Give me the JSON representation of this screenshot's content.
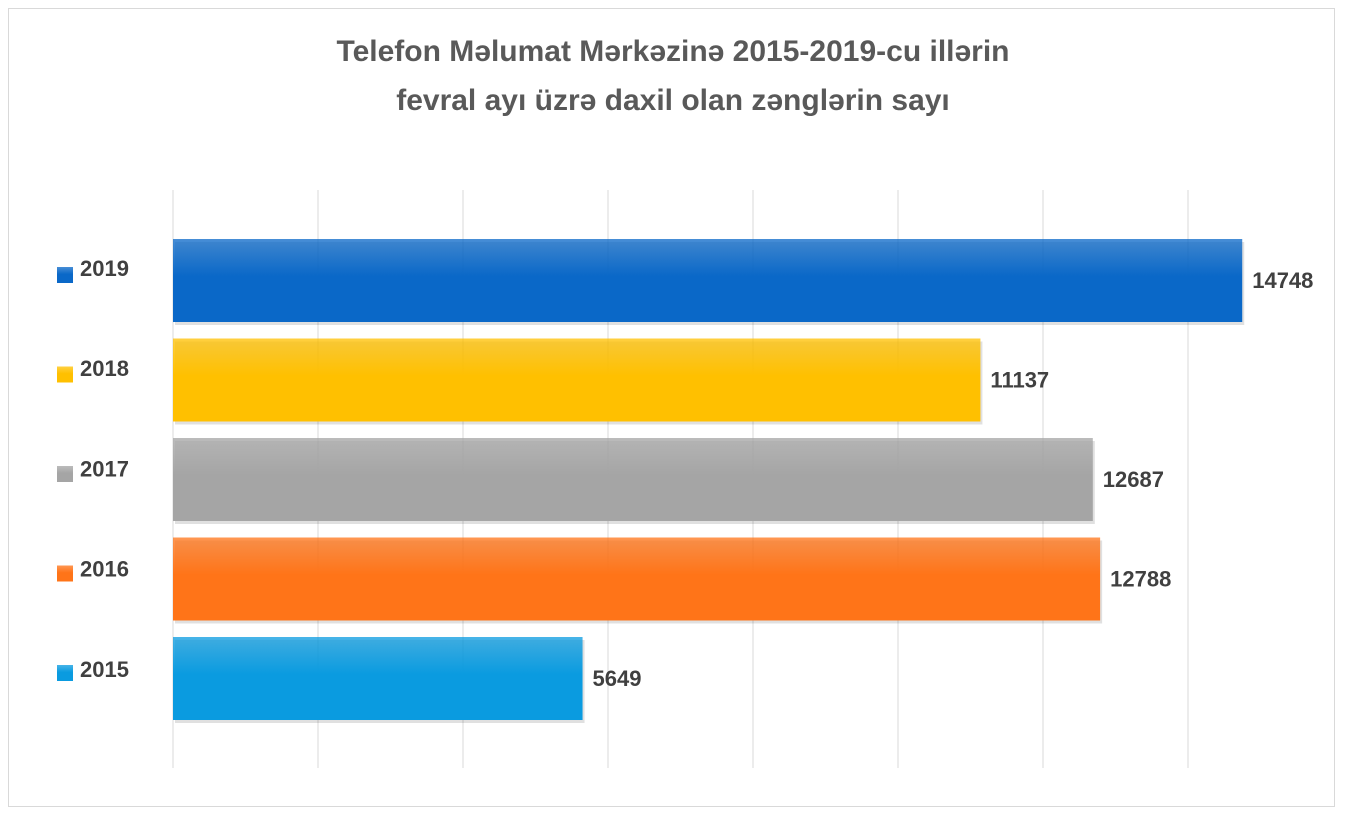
{
  "chart_data": {
    "type": "bar",
    "orientation": "horizontal",
    "title": [
      "Telefon Məlumat Mərkəzinə 2015-2019-cu illərin",
      "fevral ayı üzrə daxil olan zənglərin sayı"
    ],
    "categories": [
      "2019",
      "2018",
      "2017",
      "2016",
      "2015"
    ],
    "values": [
      14748,
      11137,
      12687,
      12788,
      5649
    ],
    "colors": [
      "#0a68c8",
      "#ffc000",
      "#a5a5a5",
      "#ff7418",
      "#0a9be0"
    ],
    "xlim": [
      0,
      16000
    ],
    "xticks": [
      0,
      2000,
      4000,
      6000,
      8000,
      10000,
      12000,
      14000
    ],
    "grid": true
  }
}
